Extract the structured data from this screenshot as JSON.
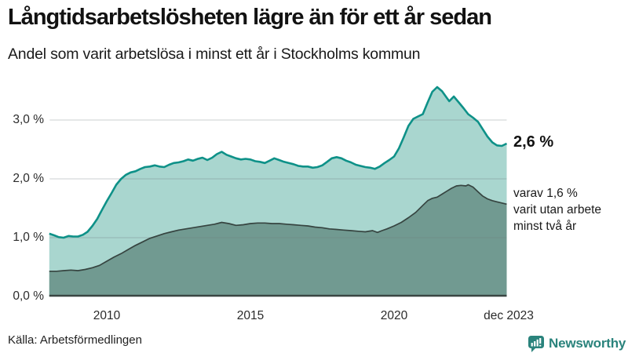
{
  "header": {
    "title": "Långtidsarbetslösheten lägre än för ett år sedan",
    "subtitle": "Andel som varit arbetslösa i minst ett år i Stockholms kommun"
  },
  "chart_data": {
    "type": "area",
    "title": "Långtidsarbetslösheten lägre än för ett år sedan",
    "subtitle": "Andel som varit arbetslösa i minst ett år i Stockholms kommun",
    "grid": "horizontal-only",
    "x_axis": {
      "ticks": [
        "2010",
        "2015",
        "2020",
        "dec 2023"
      ],
      "tick_years": [
        2010,
        2015,
        2020,
        2023.92
      ],
      "range": [
        2008.0,
        2023.92
      ]
    },
    "y_axis": {
      "unit": "%",
      "ticks": [
        "0,0 %",
        "1,0 %",
        "2,0 %",
        "3,0 %"
      ],
      "tick_values": [
        0,
        1,
        2,
        3
      ],
      "range": [
        0,
        3.6
      ]
    },
    "colors": {
      "series1_line": "#0e9188",
      "series1_fill": "#a9d6cf",
      "series2_line": "#364440",
      "series2_fill": "#719a91",
      "gridline": "#6c757d",
      "baseline": "#3a4643"
    },
    "series": [
      {
        "name": "Andel arbetslösa minst ett år",
        "end_value_label": "2,6 %",
        "end_value": 2.6,
        "points": [
          [
            2008.0,
            1.07
          ],
          [
            2008.17,
            1.04
          ],
          [
            2008.33,
            1.01
          ],
          [
            2008.5,
            1.0
          ],
          [
            2008.67,
            1.03
          ],
          [
            2008.83,
            1.02
          ],
          [
            2009.0,
            1.02
          ],
          [
            2009.17,
            1.05
          ],
          [
            2009.33,
            1.1
          ],
          [
            2009.5,
            1.2
          ],
          [
            2009.67,
            1.32
          ],
          [
            2009.83,
            1.47
          ],
          [
            2010.0,
            1.62
          ],
          [
            2010.17,
            1.76
          ],
          [
            2010.33,
            1.9
          ],
          [
            2010.5,
            2.0
          ],
          [
            2010.67,
            2.07
          ],
          [
            2010.83,
            2.11
          ],
          [
            2011.0,
            2.13
          ],
          [
            2011.17,
            2.17
          ],
          [
            2011.33,
            2.2
          ],
          [
            2011.5,
            2.21
          ],
          [
            2011.67,
            2.23
          ],
          [
            2011.83,
            2.21
          ],
          [
            2012.0,
            2.2
          ],
          [
            2012.17,
            2.24
          ],
          [
            2012.33,
            2.27
          ],
          [
            2012.5,
            2.28
          ],
          [
            2012.67,
            2.3
          ],
          [
            2012.83,
            2.33
          ],
          [
            2013.0,
            2.31
          ],
          [
            2013.17,
            2.34
          ],
          [
            2013.33,
            2.36
          ],
          [
            2013.5,
            2.32
          ],
          [
            2013.67,
            2.36
          ],
          [
            2013.83,
            2.42
          ],
          [
            2014.0,
            2.46
          ],
          [
            2014.17,
            2.41
          ],
          [
            2014.33,
            2.38
          ],
          [
            2014.5,
            2.35
          ],
          [
            2014.67,
            2.33
          ],
          [
            2014.83,
            2.34
          ],
          [
            2015.0,
            2.33
          ],
          [
            2015.17,
            2.3
          ],
          [
            2015.33,
            2.29
          ],
          [
            2015.5,
            2.27
          ],
          [
            2015.67,
            2.31
          ],
          [
            2015.83,
            2.35
          ],
          [
            2016.0,
            2.32
          ],
          [
            2016.17,
            2.29
          ],
          [
            2016.33,
            2.27
          ],
          [
            2016.5,
            2.25
          ],
          [
            2016.67,
            2.22
          ],
          [
            2016.83,
            2.21
          ],
          [
            2017.0,
            2.21
          ],
          [
            2017.17,
            2.19
          ],
          [
            2017.33,
            2.2
          ],
          [
            2017.5,
            2.23
          ],
          [
            2017.67,
            2.29
          ],
          [
            2017.83,
            2.35
          ],
          [
            2018.0,
            2.37
          ],
          [
            2018.17,
            2.35
          ],
          [
            2018.33,
            2.31
          ],
          [
            2018.5,
            2.28
          ],
          [
            2018.67,
            2.24
          ],
          [
            2018.83,
            2.22
          ],
          [
            2019.0,
            2.2
          ],
          [
            2019.17,
            2.19
          ],
          [
            2019.33,
            2.17
          ],
          [
            2019.5,
            2.21
          ],
          [
            2019.67,
            2.27
          ],
          [
            2019.83,
            2.32
          ],
          [
            2020.0,
            2.38
          ],
          [
            2020.17,
            2.52
          ],
          [
            2020.33,
            2.7
          ],
          [
            2020.5,
            2.9
          ],
          [
            2020.67,
            3.02
          ],
          [
            2020.83,
            3.06
          ],
          [
            2021.0,
            3.1
          ],
          [
            2021.17,
            3.3
          ],
          [
            2021.33,
            3.48
          ],
          [
            2021.5,
            3.56
          ],
          [
            2021.67,
            3.49
          ],
          [
            2021.83,
            3.38
          ],
          [
            2021.92,
            3.32
          ],
          [
            2022.08,
            3.4
          ],
          [
            2022.25,
            3.3
          ],
          [
            2022.42,
            3.2
          ],
          [
            2022.58,
            3.1
          ],
          [
            2022.75,
            3.04
          ],
          [
            2022.92,
            2.97
          ],
          [
            2023.08,
            2.85
          ],
          [
            2023.25,
            2.72
          ],
          [
            2023.42,
            2.62
          ],
          [
            2023.58,
            2.57
          ],
          [
            2023.75,
            2.56
          ],
          [
            2023.92,
            2.6
          ]
        ]
      },
      {
        "name": "Varav utan arbete minst två år",
        "end_value_label": "1,6 %",
        "end_value": 1.6,
        "points": [
          [
            2008.0,
            0.43
          ],
          [
            2008.25,
            0.43
          ],
          [
            2008.5,
            0.44
          ],
          [
            2008.75,
            0.45
          ],
          [
            2009.0,
            0.44
          ],
          [
            2009.25,
            0.46
          ],
          [
            2009.5,
            0.49
          ],
          [
            2009.75,
            0.53
          ],
          [
            2010.0,
            0.6
          ],
          [
            2010.25,
            0.67
          ],
          [
            2010.5,
            0.73
          ],
          [
            2010.75,
            0.8
          ],
          [
            2011.0,
            0.87
          ],
          [
            2011.25,
            0.93
          ],
          [
            2011.5,
            0.99
          ],
          [
            2011.75,
            1.03
          ],
          [
            2012.0,
            1.07
          ],
          [
            2012.25,
            1.1
          ],
          [
            2012.5,
            1.13
          ],
          [
            2012.75,
            1.15
          ],
          [
            2013.0,
            1.17
          ],
          [
            2013.25,
            1.19
          ],
          [
            2013.5,
            1.21
          ],
          [
            2013.75,
            1.23
          ],
          [
            2014.0,
            1.26
          ],
          [
            2014.25,
            1.24
          ],
          [
            2014.5,
            1.21
          ],
          [
            2014.75,
            1.22
          ],
          [
            2015.0,
            1.24
          ],
          [
            2015.25,
            1.25
          ],
          [
            2015.5,
            1.25
          ],
          [
            2015.75,
            1.24
          ],
          [
            2016.0,
            1.24
          ],
          [
            2016.25,
            1.23
          ],
          [
            2016.5,
            1.22
          ],
          [
            2016.75,
            1.21
          ],
          [
            2017.0,
            1.2
          ],
          [
            2017.25,
            1.18
          ],
          [
            2017.5,
            1.17
          ],
          [
            2017.75,
            1.15
          ],
          [
            2018.0,
            1.14
          ],
          [
            2018.25,
            1.13
          ],
          [
            2018.5,
            1.12
          ],
          [
            2018.75,
            1.11
          ],
          [
            2019.0,
            1.1
          ],
          [
            2019.25,
            1.12
          ],
          [
            2019.42,
            1.09
          ],
          [
            2019.58,
            1.12
          ],
          [
            2019.75,
            1.15
          ],
          [
            2020.0,
            1.2
          ],
          [
            2020.25,
            1.26
          ],
          [
            2020.5,
            1.34
          ],
          [
            2020.75,
            1.43
          ],
          [
            2021.0,
            1.55
          ],
          [
            2021.17,
            1.63
          ],
          [
            2021.33,
            1.67
          ],
          [
            2021.5,
            1.69
          ],
          [
            2021.67,
            1.74
          ],
          [
            2021.83,
            1.79
          ],
          [
            2022.0,
            1.84
          ],
          [
            2022.17,
            1.88
          ],
          [
            2022.33,
            1.89
          ],
          [
            2022.5,
            1.88
          ],
          [
            2022.58,
            1.9
          ],
          [
            2022.75,
            1.86
          ],
          [
            2022.92,
            1.78
          ],
          [
            2023.08,
            1.71
          ],
          [
            2023.25,
            1.66
          ],
          [
            2023.42,
            1.63
          ],
          [
            2023.58,
            1.61
          ],
          [
            2023.75,
            1.59
          ],
          [
            2023.92,
            1.57
          ]
        ]
      }
    ],
    "annotations": {
      "total_label": "2,6 %",
      "subset_lines": [
        "varav 1,6 %",
        "varit utan arbete",
        "minst två år"
      ]
    }
  },
  "footer": {
    "source": "Källa: Arbetsförmedlingen",
    "brand": "Newsworthy"
  }
}
